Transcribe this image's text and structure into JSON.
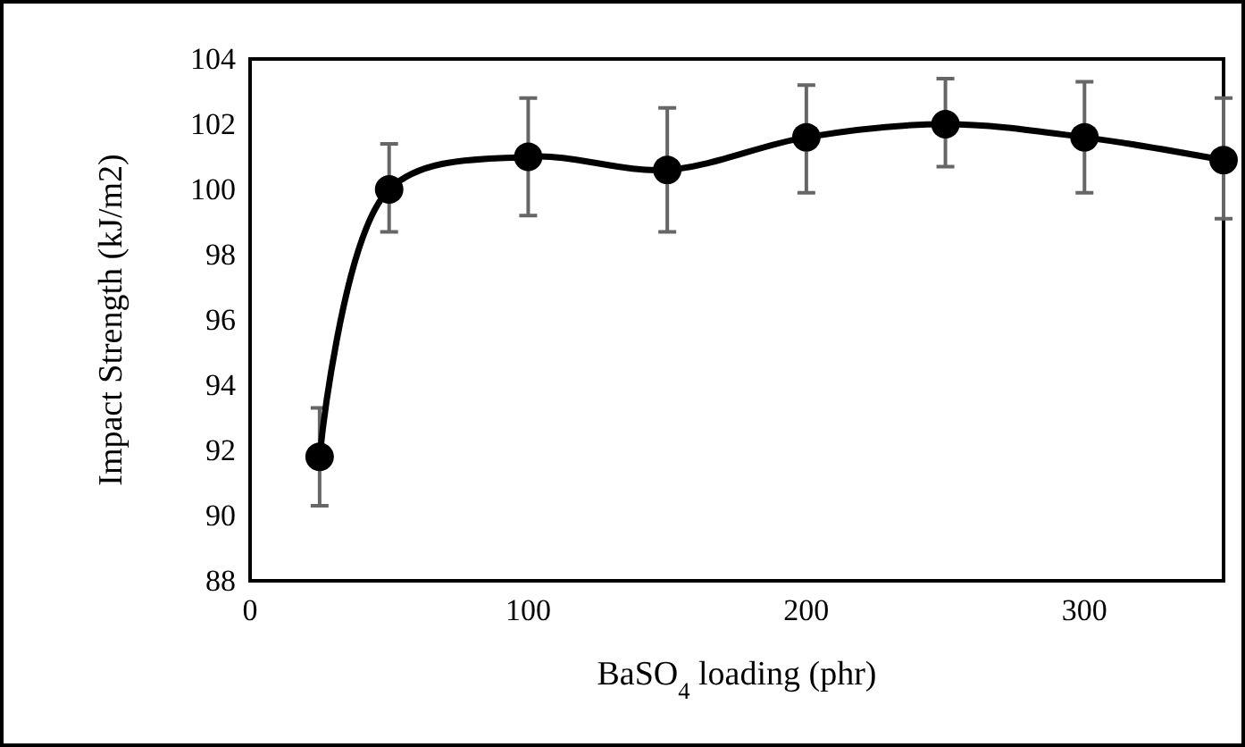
{
  "chart_data": {
    "type": "line",
    "xlabel": "BaSO$_{4}$ loading (phr)",
    "ylabel": "Impact Strength (kJ/m2)",
    "x": [
      25,
      50,
      100,
      150,
      200,
      250,
      300,
      350
    ],
    "series": [
      {
        "color": "#000000",
        "values": [
          91.8,
          100.0,
          101.0,
          100.6,
          101.6,
          102.0,
          101.6,
          100.9
        ],
        "errors": [
          [
            90.3,
            93.3
          ],
          [
            98.7,
            101.4
          ],
          [
            99.2,
            102.8
          ],
          [
            98.7,
            102.5
          ],
          [
            99.9,
            103.2
          ],
          [
            100.7,
            103.4
          ],
          [
            99.9,
            103.3
          ],
          [
            99.1,
            102.8
          ]
        ]
      }
    ],
    "xlim": [
      0,
      350
    ],
    "xticks": [
      0,
      100,
      200,
      300
    ],
    "ylim": [
      88,
      104
    ],
    "yticks": [
      88,
      90,
      92,
      94,
      96,
      98,
      100,
      102,
      104
    ],
    "marker": "circle",
    "line_style": "solid"
  }
}
